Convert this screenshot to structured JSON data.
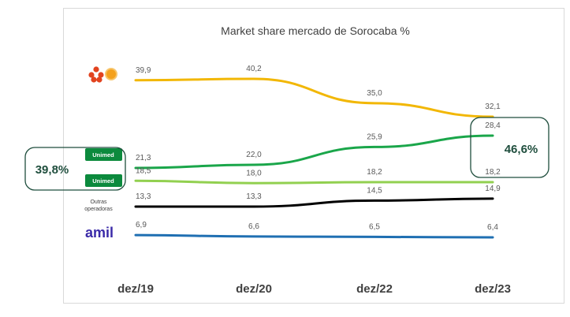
{
  "chart_data": {
    "type": "line",
    "title": "Market share mercado de Sorocaba %",
    "categories": [
      "dez/19",
      "dez/20",
      "dez/22",
      "dez/23"
    ],
    "ylim": [
      0,
      45
    ],
    "grid": false,
    "series": [
      {
        "key": "flower",
        "color": "#f2b705",
        "values": [
          39.9,
          40.2,
          35.0,
          32.1
        ],
        "labels": [
          "39,9",
          "40,2",
          "35,0",
          "32,1"
        ]
      },
      {
        "key": "unimed_a",
        "name": "Unimed",
        "color": "#1aa64a",
        "values": [
          21.3,
          22.0,
          25.9,
          28.4
        ],
        "labels": [
          "21,3",
          "22,0",
          "25,9",
          "28,4"
        ]
      },
      {
        "key": "unimed_b",
        "name": "Unimed",
        "color": "#92d050",
        "values": [
          18.5,
          18.0,
          18.2,
          18.2
        ],
        "labels": [
          "18,5",
          "18,0",
          "18,2",
          "18,2"
        ]
      },
      {
        "key": "outras",
        "name": "Outras operadoras",
        "color": "#000000",
        "values": [
          13.3,
          13.3,
          14.5,
          14.9
        ],
        "labels": [
          "13,3",
          "13,3",
          "14,5",
          "14,9"
        ]
      },
      {
        "key": "amil",
        "name": "amil",
        "color": "#1f6fb2",
        "values": [
          6.9,
          6.6,
          6.5,
          6.4
        ],
        "labels": [
          "6,9",
          "6,6",
          "6,5",
          "6,4"
        ]
      }
    ],
    "legend": {
      "unimed_top": "Unimed",
      "unimed_bottom": "Unimed",
      "outras_line1": "Outras",
      "outras_line2": "operadoras",
      "amil": "amil"
    },
    "callouts": {
      "left": "39,8%",
      "right": "46,6%"
    },
    "colors": {
      "callout_text": "#1f4e3d",
      "callout_border": "#1f4e3d",
      "unimed_badge": "#0c8a3d",
      "axis_text": "#595959"
    }
  }
}
